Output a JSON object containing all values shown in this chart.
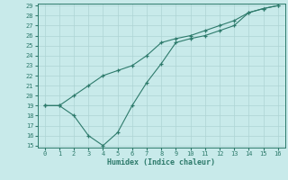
{
  "xlabel": "Humidex (Indice chaleur)",
  "line1_x": [
    0,
    1,
    2,
    3,
    4,
    5,
    6,
    7,
    8,
    9,
    10,
    11,
    12,
    13,
    14,
    15,
    16
  ],
  "line1_y": [
    19,
    19,
    20,
    21,
    22,
    22.5,
    23,
    24,
    25.3,
    25.7,
    26,
    26.5,
    27,
    27.5,
    28.3,
    28.7,
    29
  ],
  "line2_x": [
    0,
    1,
    2,
    3,
    4,
    5,
    6,
    7,
    8,
    9,
    10,
    11,
    12,
    13,
    14,
    15,
    16
  ],
  "line2_y": [
    19,
    19,
    18,
    16,
    15,
    16.3,
    19,
    21.3,
    23.2,
    25.3,
    25.7,
    26,
    26.5,
    27,
    28.3,
    28.7,
    29
  ],
  "line_color": "#2d7a6b",
  "bg_color": "#c8eaea",
  "grid_color": "#aed4d4",
  "ylim": [
    15,
    29
  ],
  "xlim": [
    -0.5,
    16.5
  ],
  "yticks": [
    15,
    16,
    17,
    18,
    19,
    20,
    21,
    22,
    23,
    24,
    25,
    26,
    27,
    28,
    29
  ],
  "xticks": [
    0,
    1,
    2,
    3,
    4,
    5,
    6,
    7,
    8,
    9,
    10,
    11,
    12,
    13,
    14,
    15,
    16
  ]
}
